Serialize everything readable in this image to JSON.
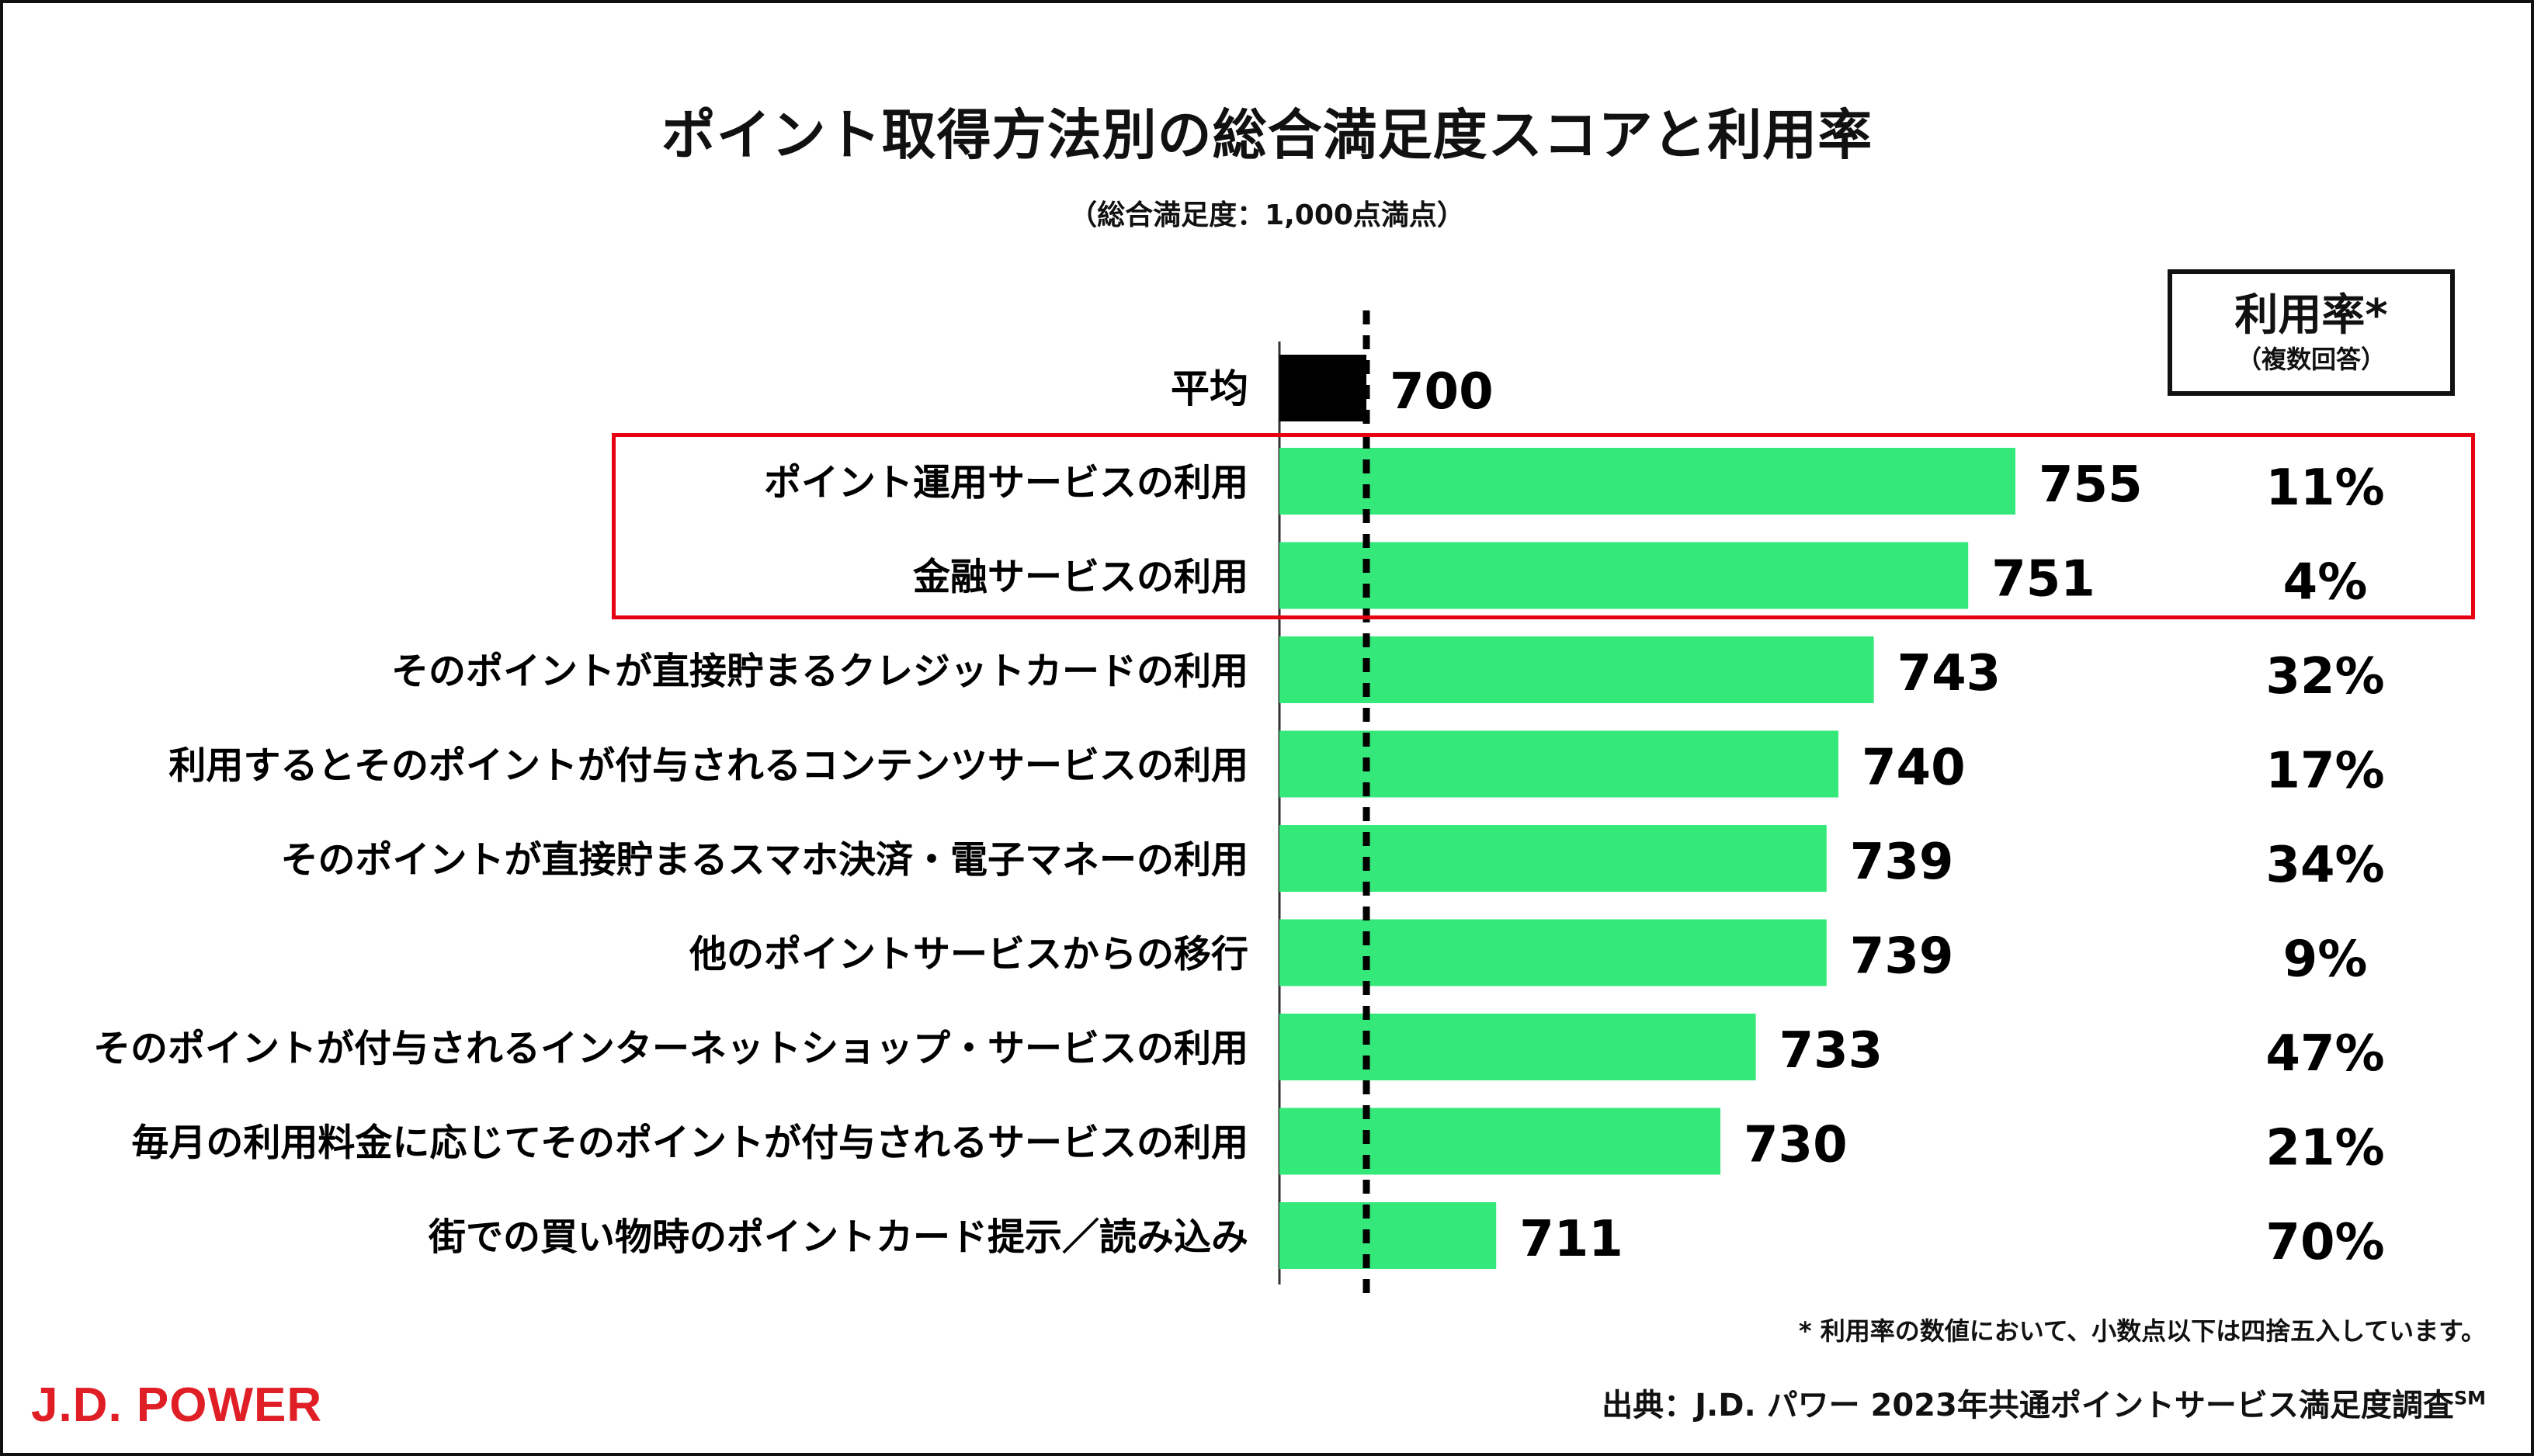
{
  "title": "ポイント取得方法別の総合満足度スコアと利用率",
  "subtitle": "（総合満足度：1,000点満点）",
  "rate_header": {
    "title": "利用率*",
    "sub": "（複数回答）"
  },
  "footnote": "* 利用率の数値において、小数点以下は四捨五入しています。",
  "source": "出典：J.D. パワー 2023年共通ポイントサービス満足度調査",
  "source_mark": "SM",
  "logo": "J.D. POWER",
  "colors": {
    "bar": "#34e87a",
    "average_bar": "#000000",
    "highlight": "#e60012",
    "brand": "#e01e26"
  },
  "chart_data": {
    "type": "bar",
    "orientation": "horizontal",
    "title": "ポイント取得方法別の総合満足度スコアと利用率",
    "subtitle": "（総合満足度：1,000点満点）",
    "average": {
      "label": "平均",
      "value": 700
    },
    "reference_line": 700,
    "categories": [
      "ポイント運用サービスの利用",
      "金融サービスの利用",
      "そのポイントが直接貯まるクレジットカードの利用",
      "利用するとそのポイントが付与されるコンテンツサービスの利用",
      "そのポイントが直接貯まるスマホ決済・電子マネーの利用",
      "他のポイントサービスからの移行",
      "そのポイントが付与されるインターネットショップ・サービスの利用",
      "毎月の利用料金に応じてそのポイントが付与されるサービスの利用",
      "街での買い物時のポイントカード提示／読み込み"
    ],
    "values": [
      755,
      751,
      743,
      740,
      739,
      739,
      733,
      730,
      711
    ],
    "usage_rates": [
      "11%",
      "4%",
      "32%",
      "17%",
      "34%",
      "9%",
      "47%",
      "21%",
      "70%"
    ],
    "highlighted_categories": [
      "ポイント運用サービスの利用",
      "金融サービスの利用"
    ]
  }
}
